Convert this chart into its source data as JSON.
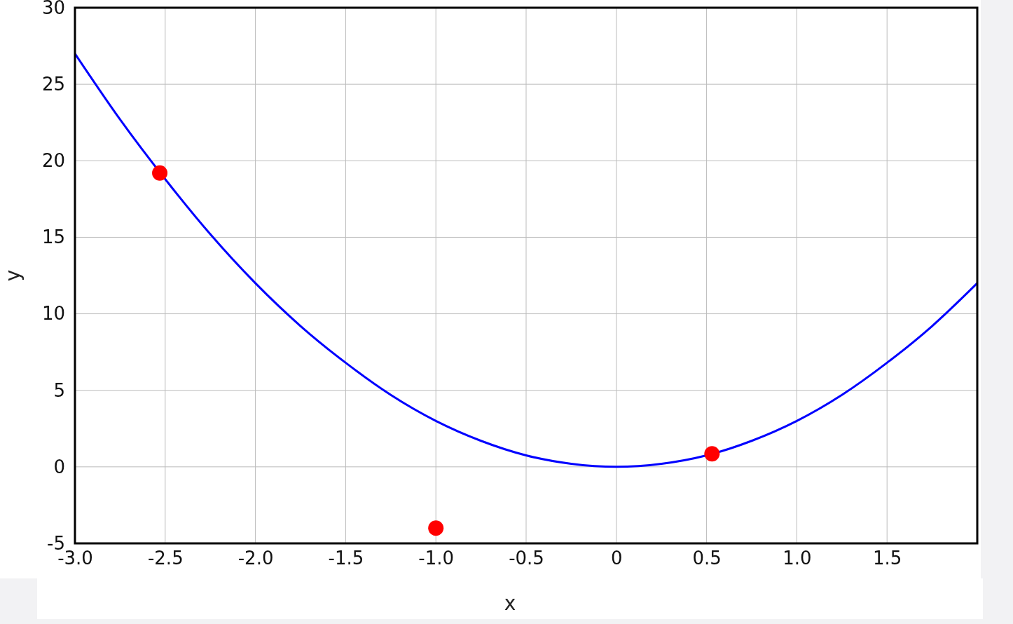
{
  "chart_data": {
    "type": "line",
    "xlabel": "x",
    "ylabel": "y",
    "xlim": [
      -3,
      2
    ],
    "xticks": [
      {
        "value": -3,
        "label": "-3.0"
      },
      {
        "value": -2.5,
        "label": "-2.5"
      },
      {
        "value": -2,
        "label": "-2.0"
      },
      {
        "value": -1.5,
        "label": "-1.5"
      },
      {
        "value": -1,
        "label": "-1.0"
      },
      {
        "value": -0.5,
        "label": "-0.5"
      },
      0,
      {
        "value": 0.5,
        "label": "0.5"
      },
      {
        "value": 1,
        "label": "1.0"
      },
      {
        "value": 1.5,
        "label": "1.5"
      }
    ],
    "ylim": [
      -5,
      30
    ],
    "yticks": [
      -5,
      0,
      5,
      10,
      15,
      20,
      25,
      30
    ],
    "grid": true,
    "series": [
      {
        "color": "#0000ff",
        "marker": "none",
        "x": [
          -3,
          -2.75,
          -2.5,
          -2.25,
          -2,
          -1.75,
          -1.5,
          -1.25,
          -1,
          -0.75,
          -0.5,
          -0.25,
          0,
          0.25,
          0.5,
          0.75,
          1,
          1.25,
          1.5,
          1.75,
          2
        ],
        "values": [
          27,
          22.7,
          18.8,
          15.2,
          12,
          9.2,
          6.8,
          4.7,
          3,
          1.7,
          0.75,
          0.2,
          0,
          0.2,
          0.75,
          1.7,
          3,
          4.7,
          6.8,
          9.2,
          12
        ]
      },
      {
        "type": "scatter",
        "color": "#ff0000",
        "marker": "circle",
        "x": [
          -2.53,
          -1,
          0.53
        ],
        "values": [
          19.2,
          -4,
          0.85
        ]
      }
    ]
  }
}
